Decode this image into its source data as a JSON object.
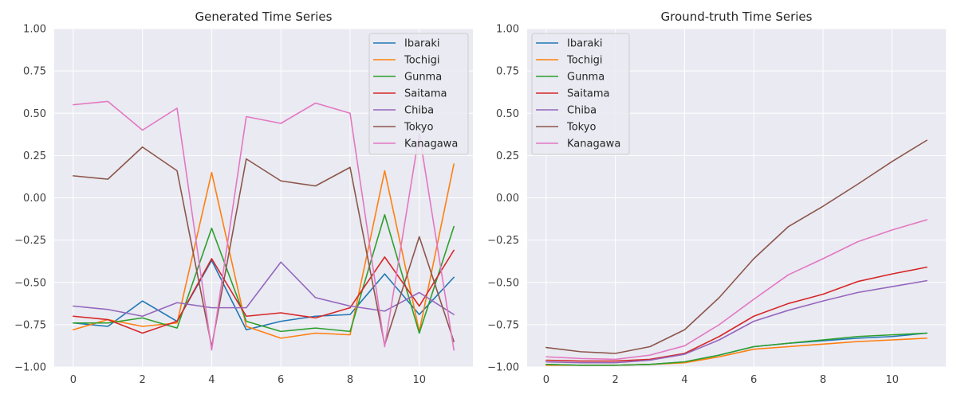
{
  "chart_data": [
    {
      "type": "line",
      "title": "Generated Time Series",
      "xlabel": "",
      "ylabel": "",
      "xlim": [
        -0.55,
        11.55
      ],
      "ylim": [
        -1.0,
        1.0
      ],
      "xticks": [
        0,
        2,
        4,
        6,
        8,
        10
      ],
      "yticks": [
        -1.0,
        -0.75,
        -0.5,
        -0.25,
        0.0,
        0.25,
        0.5,
        0.75,
        1.0
      ],
      "ytick_labels": [
        "−1.00",
        "−0.75",
        "−0.50",
        "−0.25",
        "0.00",
        "0.25",
        "0.50",
        "0.75",
        "1.00"
      ],
      "grid": true,
      "legend_position": "top-right",
      "x": [
        0,
        1,
        2,
        3,
        4,
        5,
        6,
        7,
        8,
        9,
        10,
        11
      ],
      "series": [
        {
          "name": "Ibaraki",
          "color": "#1f77b4",
          "values": [
            -0.74,
            -0.76,
            -0.61,
            -0.73,
            -0.37,
            -0.78,
            -0.73,
            -0.7,
            -0.69,
            -0.45,
            -0.69,
            -0.47
          ]
        },
        {
          "name": "Tochigi",
          "color": "#ff7f0e",
          "values": [
            -0.78,
            -0.72,
            -0.76,
            -0.74,
            0.15,
            -0.76,
            -0.83,
            -0.8,
            -0.81,
            0.16,
            -0.79,
            0.2
          ]
        },
        {
          "name": "Gunma",
          "color": "#2ca02c",
          "values": [
            -0.74,
            -0.74,
            -0.71,
            -0.77,
            -0.18,
            -0.73,
            -0.79,
            -0.77,
            -0.79,
            -0.1,
            -0.8,
            -0.17
          ]
        },
        {
          "name": "Saitama",
          "color": "#d62728",
          "values": [
            -0.7,
            -0.72,
            -0.8,
            -0.73,
            -0.36,
            -0.7,
            -0.68,
            -0.71,
            -0.65,
            -0.35,
            -0.64,
            -0.31
          ]
        },
        {
          "name": "Chiba",
          "color": "#9467bd",
          "values": [
            -0.64,
            -0.66,
            -0.7,
            -0.62,
            -0.65,
            -0.65,
            -0.38,
            -0.59,
            -0.64,
            -0.67,
            -0.56,
            -0.69
          ]
        },
        {
          "name": "Tokyo",
          "color": "#8c564b",
          "values": [
            0.13,
            0.11,
            0.3,
            0.16,
            -0.88,
            0.23,
            0.1,
            0.07,
            0.18,
            -0.87,
            -0.23,
            -0.85
          ]
        },
        {
          "name": "Kanagawa",
          "color": "#e377c2",
          "values": [
            0.55,
            0.57,
            0.4,
            0.53,
            -0.9,
            0.48,
            0.44,
            0.56,
            0.5,
            -0.88,
            0.38,
            -0.9
          ]
        }
      ]
    },
    {
      "type": "line",
      "title": "Ground-truth Time Series",
      "xlabel": "",
      "ylabel": "",
      "xlim": [
        -0.55,
        11.55
      ],
      "ylim": [
        -1.0,
        1.0
      ],
      "xticks": [
        0,
        2,
        4,
        6,
        8,
        10
      ],
      "yticks": [
        -1.0,
        -0.75,
        -0.5,
        -0.25,
        0.0,
        0.25,
        0.5,
        0.75,
        1.0
      ],
      "ytick_labels": [
        "−1.00",
        "−0.75",
        "−0.50",
        "−0.25",
        "0.00",
        "0.25",
        "0.50",
        "0.75",
        "1.00"
      ],
      "grid": true,
      "legend_position": "top-left",
      "x": [
        0,
        1,
        2,
        3,
        4,
        5,
        6,
        7,
        8,
        9,
        10,
        11
      ],
      "series": [
        {
          "name": "Ibaraki",
          "color": "#1f77b4",
          "values": [
            -0.985,
            -0.99,
            -0.99,
            -0.985,
            -0.97,
            -0.93,
            -0.88,
            -0.86,
            -0.845,
            -0.83,
            -0.82,
            -0.8
          ]
        },
        {
          "name": "Tochigi",
          "color": "#ff7f0e",
          "values": [
            -0.99,
            -0.99,
            -0.99,
            -0.985,
            -0.975,
            -0.94,
            -0.895,
            -0.88,
            -0.865,
            -0.85,
            -0.84,
            -0.83
          ]
        },
        {
          "name": "Gunma",
          "color": "#2ca02c",
          "values": [
            -0.985,
            -0.99,
            -0.99,
            -0.985,
            -0.97,
            -0.93,
            -0.88,
            -0.86,
            -0.84,
            -0.82,
            -0.81,
            -0.8
          ]
        },
        {
          "name": "Saitama",
          "color": "#d62728",
          "values": [
            -0.96,
            -0.965,
            -0.965,
            -0.955,
            -0.92,
            -0.82,
            -0.7,
            -0.625,
            -0.57,
            -0.495,
            -0.45,
            -0.41
          ]
        },
        {
          "name": "Chiba",
          "color": "#9467bd",
          "values": [
            -0.97,
            -0.975,
            -0.975,
            -0.96,
            -0.925,
            -0.84,
            -0.73,
            -0.665,
            -0.61,
            -0.56,
            -0.525,
            -0.49
          ]
        },
        {
          "name": "Tokyo",
          "color": "#8c564b",
          "values": [
            -0.885,
            -0.91,
            -0.92,
            -0.88,
            -0.78,
            -0.59,
            -0.36,
            -0.17,
            -0.05,
            0.08,
            0.215,
            0.34
          ]
        },
        {
          "name": "Kanagawa",
          "color": "#e377c2",
          "values": [
            -0.94,
            -0.95,
            -0.955,
            -0.93,
            -0.875,
            -0.75,
            -0.6,
            -0.455,
            -0.36,
            -0.26,
            -0.19,
            -0.13
          ]
        }
      ]
    }
  ]
}
